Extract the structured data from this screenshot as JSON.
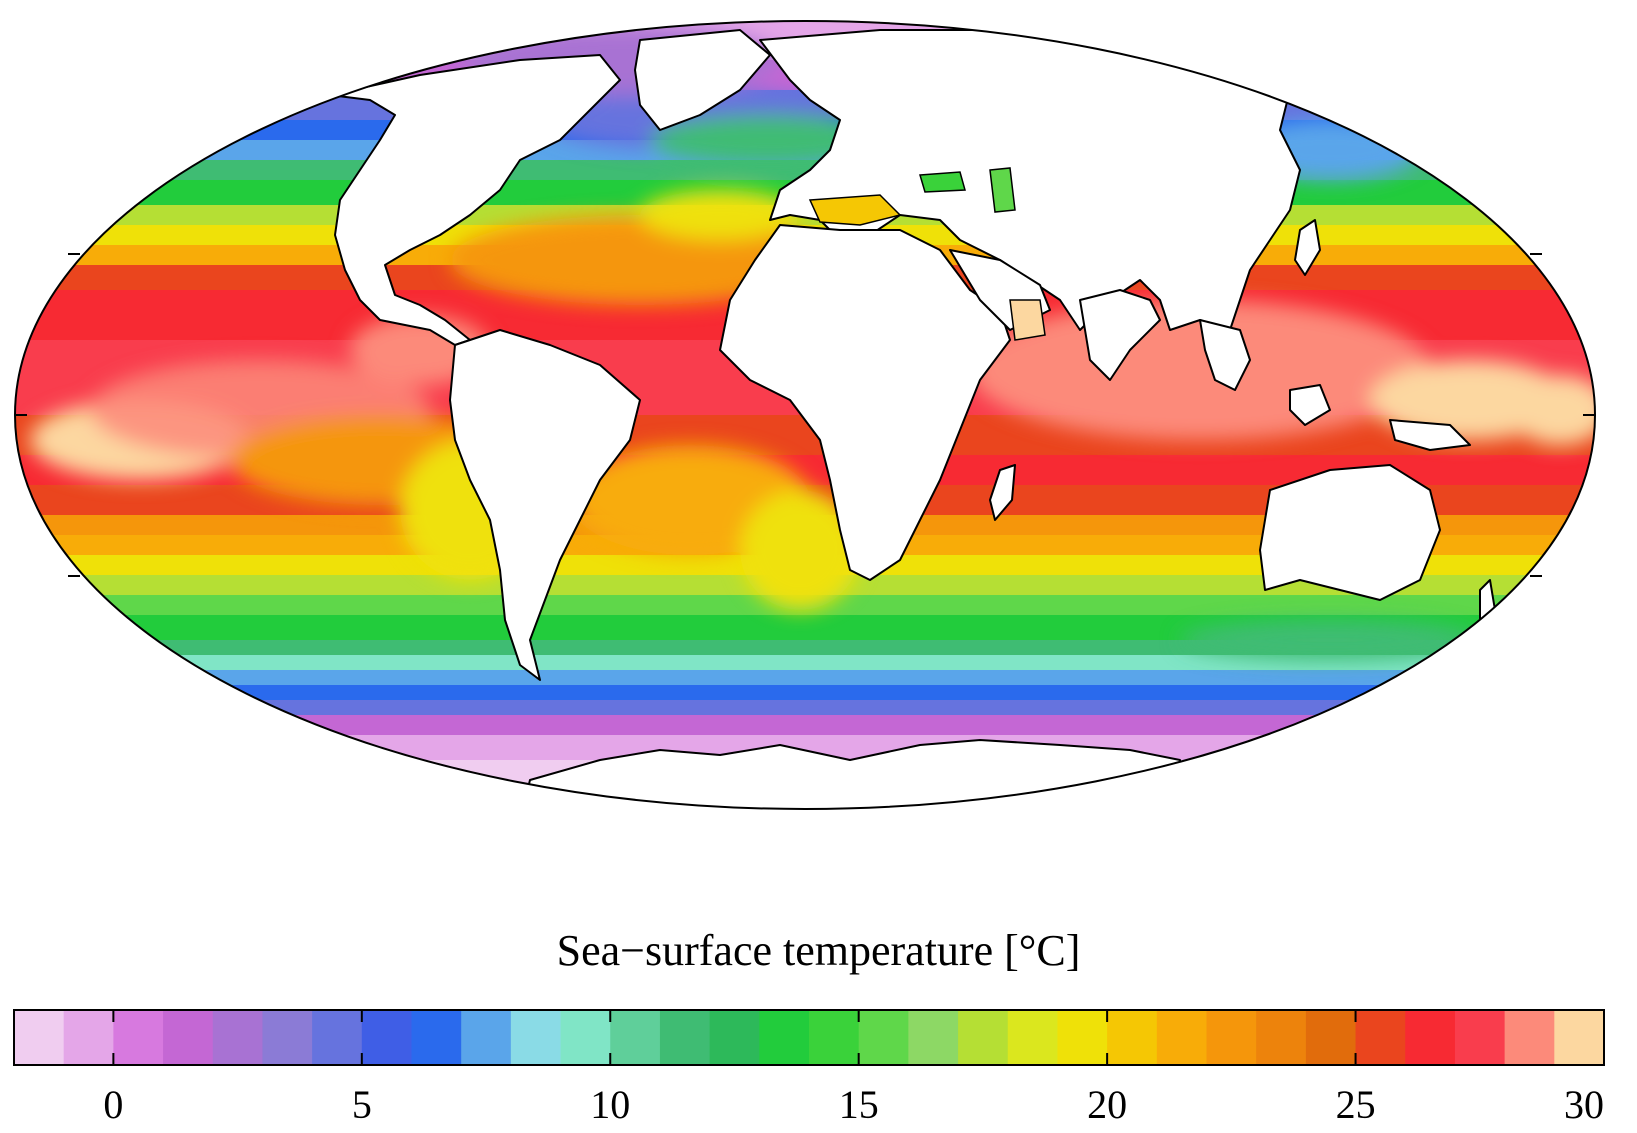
{
  "map": {
    "projection": "mollweide",
    "variable": "sea-surface temperature",
    "land_color": "#ffffff",
    "coast_color": "#000000"
  },
  "colorbar": {
    "title": "Sea−surface temperature [°C]",
    "min": -2,
    "max": 30,
    "step": 1,
    "tick_values": [
      0,
      5,
      10,
      15,
      20,
      25,
      30
    ],
    "tick_labels": [
      "0",
      "5",
      "10",
      "15",
      "20",
      "25",
      "30"
    ],
    "colors": [
      "#f0cdf0",
      "#e4a6e8",
      "#d779df",
      "#c467d4",
      "#a872d3",
      "#8b7bd6",
      "#6673de",
      "#3f5ee6",
      "#2a6aed",
      "#5aa5ea",
      "#8adbe6",
      "#80e5c6",
      "#5fcf9a",
      "#3fbc73",
      "#2db95a",
      "#22cc3c",
      "#3ad23a",
      "#5fd74a",
      "#8dd865",
      "#b5df34",
      "#dbe71e",
      "#efe108",
      "#f5c704",
      "#f8ac08",
      "#f5960b",
      "#ed830c",
      "#e16c0c",
      "#ea451e",
      "#f72a33",
      "#f93d4d",
      "#fc8a7a",
      "#fcd7a0"
    ]
  }
}
